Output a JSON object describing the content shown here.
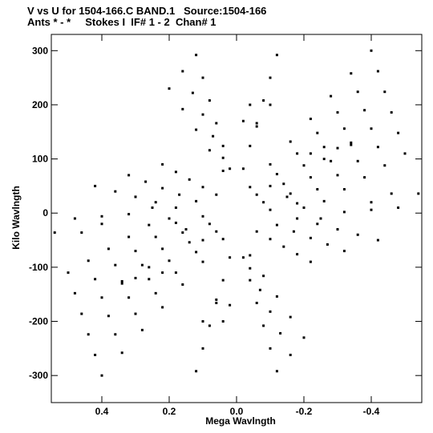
{
  "header": {
    "line1": "V vs U for 1504-166.C BAND.1   Source:1504-166",
    "line2": "Ants * - *     Stokes I  IF# 1 - 2  Chan# 1"
  },
  "chart_data": {
    "type": "scatter",
    "title": "V vs U for 1504-166.C BAND.1   Source:1504-166",
    "subtitle": "Ants * - *     Stokes I  IF# 1 - 2  Chan# 1",
    "xlabel": "Mega Wavlngth",
    "ylabel": "Kilo Wavlngth",
    "xlim": [
      0.55,
      -0.55
    ],
    "ylim": [
      -350,
      330
    ],
    "x_reversed": true,
    "grid": false,
    "x_ticks": [
      0.4,
      0.2,
      0.0,
      -0.2,
      -0.4
    ],
    "x_tick_labels": [
      "0.4",
      "0.2",
      "0.0",
      "-0.2",
      "-0.4"
    ],
    "y_ticks": [
      300,
      200,
      100,
      0,
      -100,
      -200,
      -300
    ],
    "y_tick_labels": [
      "300",
      "200",
      "100",
      "0",
      "-100",
      "-200",
      "-300"
    ],
    "marker_color": "#000000",
    "description_of_coverage": "uv-coverage six-armed star of symmetric baseline tracks",
    "series": [
      {
        "points": [
          [
            -0.4,
            300
          ],
          [
            -0.34,
            258
          ],
          [
            -0.28,
            216
          ],
          [
            -0.22,
            174
          ],
          [
            -0.16,
            132
          ],
          [
            -0.1,
            90
          ],
          [
            -0.04,
            48
          ],
          [
            -0.42,
            262
          ],
          [
            -0.36,
            224
          ],
          [
            -0.3,
            186
          ],
          [
            -0.24,
            148
          ],
          [
            -0.18,
            110
          ],
          [
            -0.12,
            72
          ],
          [
            -0.06,
            34
          ],
          [
            -0.44,
            224
          ],
          [
            -0.38,
            190
          ],
          [
            -0.32,
            156
          ],
          [
            -0.26,
            122
          ],
          [
            -0.2,
            88
          ],
          [
            -0.14,
            54
          ],
          [
            -0.08,
            20
          ],
          [
            -0.46,
            186
          ],
          [
            -0.4,
            156
          ],
          [
            -0.34,
            126
          ],
          [
            -0.28,
            96
          ],
          [
            -0.22,
            66
          ],
          [
            -0.16,
            36
          ],
          [
            -0.1,
            6
          ],
          [
            -0.48,
            148
          ],
          [
            -0.42,
            122
          ],
          [
            -0.36,
            96
          ],
          [
            -0.3,
            70
          ],
          [
            -0.24,
            44
          ],
          [
            -0.18,
            18
          ],
          [
            -0.5,
            110
          ],
          [
            -0.44,
            88
          ],
          [
            -0.38,
            66
          ],
          [
            -0.32,
            44
          ],
          [
            -0.26,
            22
          ],
          [
            -0.54,
            36
          ],
          [
            -0.46,
            36
          ],
          [
            -0.4,
            20
          ],
          [
            0.4,
            -300
          ],
          [
            0.34,
            -258
          ],
          [
            0.28,
            -216
          ],
          [
            0.22,
            -174
          ],
          [
            0.16,
            -132
          ],
          [
            0.1,
            -90
          ],
          [
            0.04,
            -48
          ],
          [
            0.42,
            -262
          ],
          [
            0.36,
            -224
          ],
          [
            0.3,
            -186
          ],
          [
            0.24,
            -148
          ],
          [
            0.18,
            -110
          ],
          [
            0.12,
            -72
          ],
          [
            0.06,
            -34
          ],
          [
            0.44,
            -224
          ],
          [
            0.38,
            -190
          ],
          [
            0.32,
            -156
          ],
          [
            0.26,
            -122
          ],
          [
            0.2,
            -88
          ],
          [
            0.14,
            -54
          ],
          [
            0.08,
            -20
          ],
          [
            0.46,
            -186
          ],
          [
            0.4,
            -156
          ],
          [
            0.34,
            -126
          ],
          [
            0.28,
            -96
          ],
          [
            0.22,
            -66
          ],
          [
            0.16,
            -36
          ],
          [
            0.1,
            -6
          ],
          [
            0.48,
            -148
          ],
          [
            0.42,
            -122
          ],
          [
            0.36,
            -96
          ],
          [
            0.3,
            -70
          ],
          [
            0.24,
            -44
          ],
          [
            0.18,
            -18
          ],
          [
            0.5,
            -110
          ],
          [
            0.44,
            -88
          ],
          [
            0.38,
            -66
          ],
          [
            0.32,
            -44
          ],
          [
            0.26,
            -22
          ],
          [
            0.54,
            -36
          ],
          [
            0.46,
            -36
          ],
          [
            0.4,
            -20
          ],
          [
            0.12,
            292
          ],
          [
            0.1,
            250
          ],
          [
            0.08,
            208
          ],
          [
            0.06,
            166
          ],
          [
            0.04,
            124
          ],
          [
            0.02,
            82
          ],
          [
            0.16,
            262
          ],
          [
            0.13,
            222
          ],
          [
            0.1,
            182
          ],
          [
            0.07,
            142
          ],
          [
            0.04,
            102
          ],
          [
            0.2,
            230
          ],
          [
            0.16,
            192
          ],
          [
            0.12,
            154
          ],
          [
            0.08,
            116
          ],
          [
            0.04,
            78
          ],
          [
            -0.04,
            200
          ],
          [
            -0.02,
            170
          ],
          [
            -0.1,
            200
          ],
          [
            -0.06,
            160
          ],
          [
            -0.12,
            292
          ],
          [
            -0.1,
            250
          ],
          [
            -0.08,
            208
          ],
          [
            -0.06,
            166
          ],
          [
            -0.04,
            124
          ],
          [
            -0.02,
            82
          ],
          [
            -0.12,
            -292
          ],
          [
            -0.1,
            -250
          ],
          [
            -0.08,
            -208
          ],
          [
            -0.06,
            -166
          ],
          [
            -0.04,
            -124
          ],
          [
            -0.02,
            -82
          ],
          [
            -0.16,
            -262
          ],
          [
            -0.13,
            -222
          ],
          [
            -0.1,
            -182
          ],
          [
            -0.07,
            -142
          ],
          [
            -0.04,
            -102
          ],
          [
            -0.2,
            -230
          ],
          [
            -0.16,
            -192
          ],
          [
            -0.12,
            -154
          ],
          [
            -0.08,
            -116
          ],
          [
            -0.04,
            -78
          ],
          [
            0.04,
            -200
          ],
          [
            0.02,
            -170
          ],
          [
            0.1,
            -200
          ],
          [
            0.06,
            -160
          ],
          [
            0.12,
            -292
          ],
          [
            0.1,
            -250
          ],
          [
            0.08,
            -208
          ],
          [
            0.06,
            -166
          ],
          [
            0.04,
            -124
          ],
          [
            0.02,
            -82
          ],
          [
            0.22,
            90
          ],
          [
            0.18,
            76
          ],
          [
            0.14,
            62
          ],
          [
            0.1,
            48
          ],
          [
            0.06,
            34
          ],
          [
            0.32,
            70
          ],
          [
            0.27,
            58
          ],
          [
            0.22,
            46
          ],
          [
            0.17,
            34
          ],
          [
            0.12,
            22
          ],
          [
            0.42,
            50
          ],
          [
            0.36,
            40
          ],
          [
            0.3,
            30
          ],
          [
            0.24,
            20
          ],
          [
            0.18,
            10
          ],
          [
            0.48,
            -10
          ],
          [
            0.4,
            -6
          ],
          [
            0.32,
            -2
          ],
          [
            -0.22,
            -90
          ],
          [
            -0.18,
            -76
          ],
          [
            -0.14,
            -62
          ],
          [
            -0.1,
            -48
          ],
          [
            -0.06,
            -34
          ],
          [
            -0.32,
            -70
          ],
          [
            -0.27,
            -58
          ],
          [
            -0.22,
            -46
          ],
          [
            -0.17,
            -34
          ],
          [
            -0.12,
            -22
          ],
          [
            -0.42,
            -50
          ],
          [
            -0.36,
            -40
          ],
          [
            -0.3,
            -30
          ],
          [
            -0.24,
            -20
          ],
          [
            -0.18,
            -10
          ],
          [
            -0.48,
            10
          ],
          [
            -0.4,
            6
          ],
          [
            -0.32,
            2
          ],
          [
            0.3,
            30
          ],
          [
            0.25,
            10
          ],
          [
            0.2,
            -10
          ],
          [
            0.15,
            -30
          ],
          [
            0.1,
            -50
          ],
          [
            -0.3,
            -30
          ],
          [
            -0.25,
            -10
          ],
          [
            -0.2,
            10
          ],
          [
            -0.15,
            30
          ],
          [
            -0.1,
            50
          ],
          [
            0.26,
            -100
          ],
          [
            0.22,
            -110
          ],
          [
            0.34,
            -130
          ],
          [
            0.3,
            -120
          ],
          [
            -0.26,
            100
          ],
          [
            -0.22,
            110
          ],
          [
            -0.34,
            130
          ],
          [
            -0.3,
            120
          ]
        ]
      }
    ]
  }
}
